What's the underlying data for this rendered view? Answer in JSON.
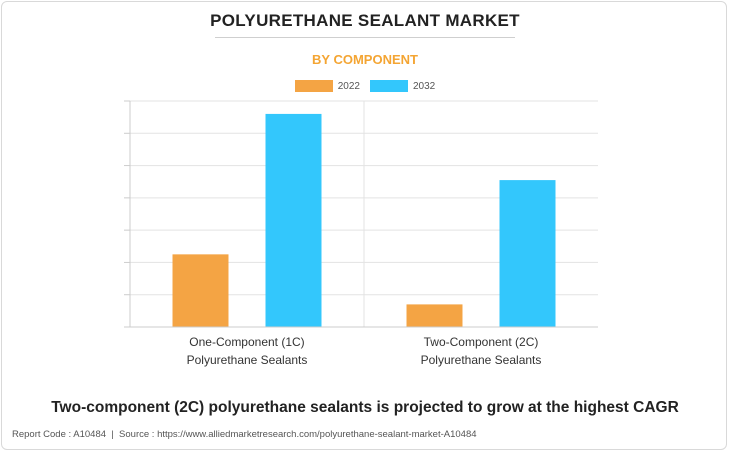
{
  "title": "POLYURETHANE SEALANT MARKET",
  "subtitle": "BY COMPONENT",
  "headline": "Two-component (2C) polyurethane sealants is projected to grow at the highest CAGR",
  "footer": {
    "report_code": "Report Code : A10484",
    "separator": "|",
    "source": "Source : https://www.alliedmarketresearch.com/polyurethane-sealant-market-A10484"
  },
  "colors": {
    "series_2022": "#f4a444",
    "series_2032": "#33c7fc",
    "grid": "#e3e3e3",
    "axis": "#cccccc"
  },
  "chart_data": {
    "type": "bar",
    "title": "",
    "xlabel": "",
    "ylabel": "",
    "categories": [
      [
        "One-Component (1C)",
        "Polyurethane Sealants"
      ],
      [
        "Two-Component (2C)",
        "Polyurethane Sealants"
      ]
    ],
    "series": [
      {
        "name": "2022",
        "values": [
          2.25,
          0.7
        ]
      },
      {
        "name": "2032",
        "values": [
          6.6,
          4.55
        ]
      }
    ],
    "ylim": [
      0,
      7
    ],
    "y_ticks_count": 7,
    "grid": true,
    "legend_position": "top-center"
  }
}
